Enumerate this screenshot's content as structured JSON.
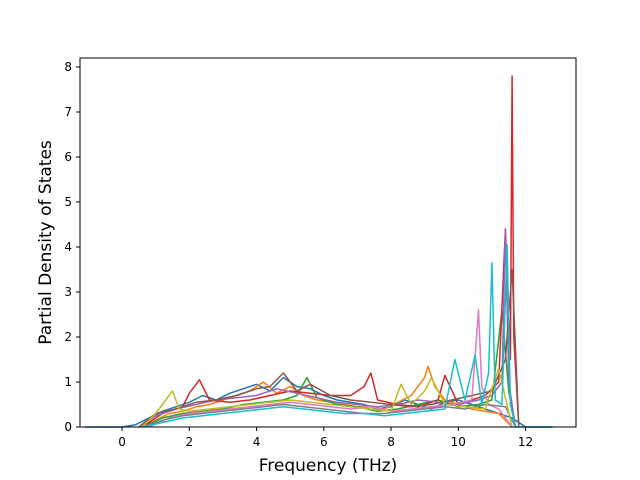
{
  "chart_data": {
    "type": "line",
    "title": "",
    "xlabel": "Frequency (THz)",
    "ylabel": "Partial Density of States",
    "xlim": [
      -1.25,
      13.5
    ],
    "ylim": [
      0,
      8.2
    ],
    "xticks": [
      0,
      2,
      4,
      6,
      8,
      10,
      12
    ],
    "yticks": [
      0,
      1,
      2,
      3,
      4,
      5,
      6,
      7,
      8
    ],
    "grid": false,
    "legend": "none",
    "colors": [
      "#1f77b4",
      "#ff7f0e",
      "#2ca02c",
      "#d62728",
      "#9467bd",
      "#8c564b",
      "#e377c2",
      "#7f7f7f",
      "#bcbd22",
      "#17becf"
    ],
    "series": [
      {
        "color": "#1f77b4",
        "x": [
          -1.1,
          0,
          0.4,
          0.8,
          1.2,
          1.6,
          2.0,
          2.4,
          2.8,
          3.2,
          3.6,
          4.0,
          4.4,
          4.8,
          5.2,
          5.6,
          6.0,
          6.4,
          6.8,
          7.2,
          7.6,
          8.0,
          8.4,
          8.8,
          9.2,
          9.6,
          10.0,
          10.4,
          10.8,
          11.2,
          11.6,
          12.0,
          12.8
        ],
        "y": [
          0,
          0,
          0.05,
          0.2,
          0.35,
          0.45,
          0.55,
          0.7,
          0.6,
          0.75,
          0.85,
          0.95,
          0.8,
          1.1,
          0.9,
          0.85,
          0.7,
          0.6,
          0.55,
          0.5,
          0.4,
          0.45,
          0.6,
          0.5,
          0.4,
          0.55,
          0.6,
          0.5,
          0.4,
          0.3,
          0.2,
          0,
          0
        ]
      },
      {
        "color": "#ff7f0e",
        "x": [
          0.6,
          1.0,
          1.4,
          1.8,
          2.2,
          2.6,
          3.0,
          3.4,
          3.8,
          4.2,
          4.6,
          5.0,
          5.4,
          5.8,
          6.2,
          6.6,
          7.0,
          7.4,
          7.8,
          8.2,
          8.6,
          9.0,
          9.1,
          9.3,
          9.6,
          10.0,
          10.4,
          10.8,
          11.2,
          11.6
        ],
        "y": [
          0,
          0.15,
          0.3,
          0.35,
          0.45,
          0.5,
          0.6,
          0.7,
          0.8,
          1.0,
          0.75,
          0.9,
          0.7,
          0.6,
          0.55,
          0.5,
          0.45,
          0.45,
          0.4,
          0.55,
          0.7,
          1.1,
          1.35,
          0.9,
          0.6,
          0.5,
          0.4,
          0.35,
          0.3,
          0
        ]
      },
      {
        "color": "#2ca02c",
        "x": [
          0.6,
          1.2,
          1.8,
          2.4,
          3.0,
          3.6,
          4.2,
          4.8,
          5.2,
          5.5,
          5.8,
          6.4,
          7.0,
          7.6,
          8.2,
          8.8,
          9.4,
          10.0,
          10.6,
          11.0,
          11.3,
          11.5,
          11.7
        ],
        "y": [
          0,
          0.2,
          0.3,
          0.35,
          0.4,
          0.5,
          0.55,
          0.6,
          0.7,
          1.1,
          0.65,
          0.5,
          0.45,
          0.35,
          0.4,
          0.5,
          0.6,
          0.45,
          0.5,
          0.6,
          2.6,
          0.8,
          0
        ]
      },
      {
        "color": "#d62728",
        "x": [
          0.6,
          1.2,
          1.8,
          2.0,
          2.3,
          2.6,
          3.2,
          3.8,
          4.4,
          5.0,
          5.6,
          6.2,
          6.8,
          7.2,
          7.4,
          7.6,
          8.2,
          8.8,
          9.4,
          9.6,
          10.0,
          10.4,
          10.8,
          11.2,
          11.4,
          11.55,
          11.6,
          11.65,
          11.8
        ],
        "y": [
          0,
          0.3,
          0.45,
          0.75,
          1.05,
          0.6,
          0.55,
          0.6,
          0.7,
          0.8,
          0.75,
          0.7,
          0.7,
          0.9,
          1.2,
          0.6,
          0.5,
          0.45,
          0.6,
          1.15,
          0.5,
          0.6,
          0.7,
          1.0,
          4.4,
          1.5,
          7.8,
          2.0,
          0
        ]
      },
      {
        "color": "#9467bd",
        "x": [
          0.5,
          1.0,
          1.6,
          2.2,
          2.8,
          3.4,
          4.0,
          4.6,
          5.2,
          5.8,
          6.4,
          7.0,
          7.6,
          8.2,
          8.8,
          9.4,
          10.0,
          10.6,
          11.0,
          11.3,
          11.4,
          11.5,
          11.7
        ],
        "y": [
          0,
          0.25,
          0.4,
          0.5,
          0.6,
          0.65,
          0.7,
          0.85,
          0.75,
          0.65,
          0.55,
          0.5,
          0.45,
          0.5,
          0.6,
          0.55,
          0.5,
          0.6,
          0.7,
          1.0,
          4.4,
          1.0,
          0
        ]
      },
      {
        "color": "#8c564b",
        "x": [
          0.5,
          1.0,
          1.6,
          2.2,
          2.8,
          3.4,
          4.0,
          4.4,
          4.8,
          5.2,
          5.6,
          6.2,
          6.8,
          7.4,
          8.0,
          8.6,
          9.2,
          9.8,
          10.4,
          11.0,
          11.4,
          11.6,
          11.8
        ],
        "y": [
          0,
          0.3,
          0.4,
          0.55,
          0.6,
          0.7,
          0.85,
          0.9,
          1.2,
          0.8,
          0.95,
          0.7,
          0.6,
          0.55,
          0.5,
          0.45,
          0.5,
          0.6,
          0.7,
          0.8,
          1.5,
          3.5,
          0
        ]
      },
      {
        "color": "#e377c2",
        "x": [
          0.8,
          1.4,
          2.0,
          2.6,
          3.2,
          3.8,
          4.4,
          5.0,
          5.6,
          6.2,
          6.8,
          7.4,
          8.0,
          8.6,
          9.2,
          9.8,
          10.4,
          10.6,
          10.7,
          10.9,
          11.2,
          11.6
        ],
        "y": [
          0,
          0.2,
          0.3,
          0.35,
          0.4,
          0.45,
          0.5,
          0.55,
          0.5,
          0.45,
          0.4,
          0.45,
          0.35,
          0.4,
          0.45,
          0.5,
          0.6,
          2.6,
          0.9,
          0.5,
          0.4,
          0
        ]
      },
      {
        "color": "#7f7f7f",
        "x": [
          0.6,
          1.2,
          1.8,
          2.4,
          3.0,
          3.6,
          4.2,
          4.8,
          5.4,
          6.0,
          6.6,
          7.2,
          7.8,
          8.4,
          9.0,
          9.6,
          10.2,
          10.8,
          11.4,
          11.7
        ],
        "y": [
          0,
          0.15,
          0.25,
          0.3,
          0.35,
          0.4,
          0.45,
          0.5,
          0.45,
          0.4,
          0.35,
          0.3,
          0.3,
          0.35,
          0.4,
          0.45,
          0.4,
          0.5,
          0.45,
          0
        ]
      },
      {
        "color": "#bcbd22",
        "x": [
          0.6,
          1.0,
          1.3,
          1.5,
          1.7,
          2.0,
          2.6,
          3.2,
          3.8,
          4.4,
          5.0,
          5.6,
          6.2,
          6.8,
          7.4,
          8.0,
          8.3,
          8.6,
          9.0,
          9.2,
          9.6,
          10.2,
          10.8,
          11.2,
          11.6
        ],
        "y": [
          0,
          0.3,
          0.6,
          0.8,
          0.4,
          0.35,
          0.4,
          0.45,
          0.5,
          0.55,
          0.6,
          0.55,
          0.5,
          0.45,
          0.4,
          0.35,
          0.95,
          0.5,
          0.8,
          1.1,
          0.5,
          0.45,
          0.4,
          1.3,
          0
        ]
      },
      {
        "color": "#17becf",
        "x": [
          0.6,
          1.2,
          1.8,
          2.4,
          3.0,
          3.6,
          4.2,
          4.8,
          5.4,
          6.0,
          6.6,
          7.2,
          7.8,
          8.4,
          9.0,
          9.6,
          9.9,
          10.2,
          10.5,
          10.7,
          10.9,
          11.0,
          11.1,
          11.3,
          11.45,
          11.55,
          11.7,
          12.8
        ],
        "y": [
          0,
          0.1,
          0.2,
          0.25,
          0.3,
          0.35,
          0.4,
          0.45,
          0.4,
          0.35,
          0.3,
          0.3,
          0.25,
          0.3,
          0.35,
          0.4,
          1.5,
          0.6,
          1.6,
          0.5,
          1.2,
          3.65,
          0.6,
          0.5,
          4.05,
          0.5,
          0,
          0
        ]
      }
    ]
  }
}
